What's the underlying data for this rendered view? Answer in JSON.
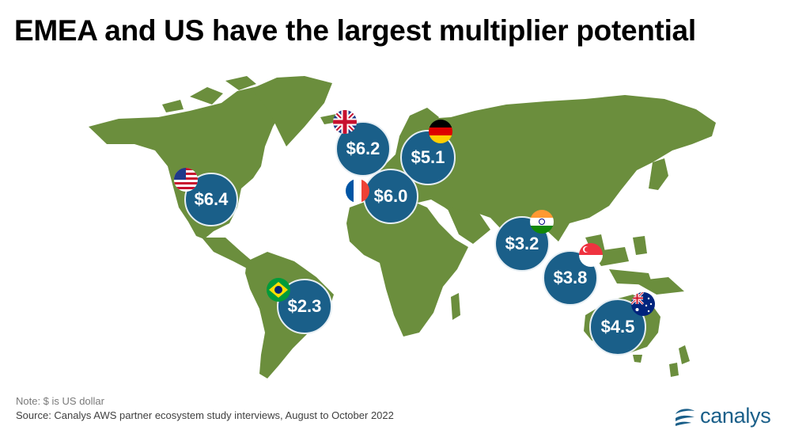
{
  "title": "EMEA and US have the largest multiplier potential",
  "note": "Note: $ is US dollar",
  "source": "Source: Canalys AWS partner ecosystem study interviews, August to October 2022",
  "logo_text": "canalys",
  "colors": {
    "land": "#6b8e3d",
    "bubble": "#1a5f89",
    "text": "#ffffff"
  },
  "markers": [
    {
      "key": "us",
      "value": "$6.4",
      "flag_icon": "us-flag-icon"
    },
    {
      "key": "uk",
      "value": "$6.2",
      "flag_icon": "uk-flag-icon"
    },
    {
      "key": "germany",
      "value": "$5.1",
      "flag_icon": "germany-flag-icon"
    },
    {
      "key": "france",
      "value": "$6.0",
      "flag_icon": "france-flag-icon"
    },
    {
      "key": "india",
      "value": "$3.2",
      "flag_icon": "india-flag-icon"
    },
    {
      "key": "singapore",
      "value": "$3.8",
      "flag_icon": "singapore-flag-icon"
    },
    {
      "key": "brazil",
      "value": "$2.3",
      "flag_icon": "brazil-flag-icon"
    },
    {
      "key": "australia",
      "value": "$4.5",
      "flag_icon": "australia-flag-icon"
    }
  ]
}
